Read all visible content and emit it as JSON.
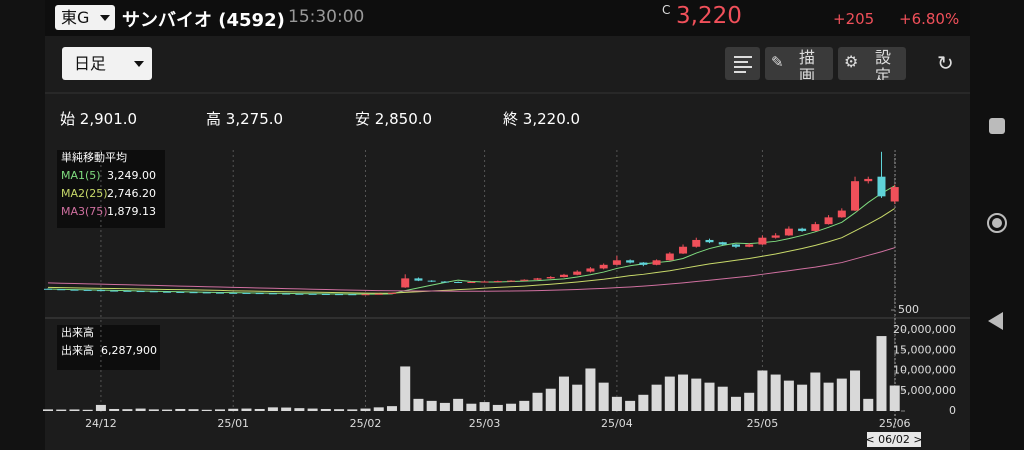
{
  "header": {
    "market": "東G",
    "name": "サンバイオ (4592)",
    "time": "15:30:00",
    "price_prefix": "C",
    "price": "3,220",
    "change": "+205",
    "change_pct": "+6.80%"
  },
  "toolbar": {
    "period": "日足",
    "draw": "描画",
    "settings": "設定"
  },
  "stats": [
    {
      "label": "始",
      "value": "2,901.0"
    },
    {
      "label": "高",
      "value": "3,275.0"
    },
    {
      "label": "安",
      "value": "2,850.0"
    },
    {
      "label": "終",
      "value": "3,220.0"
    }
  ],
  "chart_data": {
    "type": "candlestick",
    "up_color": "#f0505a",
    "down_color": "#5fd3d8",
    "volume_color": "#d9d9d9",
    "ma_title": "単純移動平均",
    "series": [
      {
        "name": "MA1(5)",
        "color": "#7fdc7f",
        "last_label": "3,249.00",
        "values": [
          965,
          958,
          952,
          946,
          941,
          934,
          928,
          922,
          916,
          909,
          903,
          898,
          893,
          888,
          884,
          880,
          876,
          872,
          868,
          864,
          861,
          858,
          855,
          853,
          851,
          852,
          856,
          930,
          990,
          1050,
          1110,
          1160,
          1130,
          1120,
          1120,
          1130,
          1140,
          1150,
          1170,
          1190,
          1230,
          1280,
          1340,
          1420,
          1480,
          1520,
          1550,
          1580,
          1640,
          1760,
          1860,
          1930,
          1980,
          1970,
          1990,
          2020,
          2080,
          2150,
          2230,
          2330,
          2440,
          2650,
          2880,
          3080,
          3249
        ]
      },
      {
        "name": "MA2(25)",
        "color": "#c8d96a",
        "last_label": "2,746.20",
        "values": [
          1000,
          995,
          990,
          985,
          980,
          975,
          970,
          965,
          960,
          955,
          950,
          945,
          940,
          935,
          925,
          920,
          915,
          910,
          905,
          900,
          895,
          890,
          885,
          880,
          875,
          872,
          875,
          890,
          905,
          920,
          935,
          950,
          965,
          985,
          1000,
          1015,
          1030,
          1050,
          1070,
          1095,
          1120,
          1150,
          1180,
          1220,
          1260,
          1290,
          1330,
          1370,
          1420,
          1470,
          1520,
          1560,
          1600,
          1640,
          1690,
          1740,
          1800,
          1860,
          1930,
          2010,
          2100,
          2250,
          2400,
          2560,
          2746.2
        ]
      },
      {
        "name": "MA3(75)",
        "color": "#d070a0",
        "last_label": "1,879.13",
        "values": [
          1100,
          1093,
          1086,
          1079,
          1072,
          1065,
          1058,
          1051,
          1044,
          1037,
          1030,
          1023,
          1016,
          1009,
          1002,
          995,
          988,
          981,
          974,
          967,
          960,
          953,
          946,
          940,
          935,
          930,
          926,
          924,
          922,
          920,
          918,
          916,
          915,
          915,
          917,
          920,
          925,
          930,
          937,
          945,
          955,
          967,
          980,
          995,
          1010,
          1030,
          1050,
          1075,
          1100,
          1130,
          1160,
          1190,
          1220,
          1250,
          1290,
          1330,
          1370,
          1410,
          1450,
          1500,
          1550,
          1630,
          1710,
          1790,
          1879.13
        ]
      }
    ],
    "ohlc": [
      [
        970,
        980,
        950,
        960
      ],
      [
        960,
        965,
        945,
        950
      ],
      [
        950,
        955,
        940,
        945
      ],
      [
        945,
        950,
        935,
        940
      ],
      [
        940,
        960,
        925,
        930
      ],
      [
        930,
        935,
        920,
        925
      ],
      [
        925,
        930,
        915,
        920
      ],
      [
        920,
        925,
        910,
        915
      ],
      [
        915,
        920,
        900,
        905
      ],
      [
        905,
        910,
        895,
        900
      ],
      [
        900,
        905,
        890,
        895
      ],
      [
        895,
        900,
        885,
        890
      ],
      [
        890,
        895,
        880,
        885
      ],
      [
        885,
        890,
        875,
        880
      ],
      [
        880,
        885,
        872,
        878
      ],
      [
        878,
        882,
        870,
        875
      ],
      [
        875,
        880,
        865,
        870
      ],
      [
        870,
        875,
        860,
        865
      ],
      [
        865,
        870,
        855,
        860
      ],
      [
        860,
        865,
        852,
        858
      ],
      [
        858,
        862,
        850,
        855
      ],
      [
        855,
        860,
        848,
        852
      ],
      [
        852,
        856,
        845,
        850
      ],
      [
        850,
        855,
        842,
        848
      ],
      [
        848,
        858,
        845,
        850
      ],
      [
        850,
        865,
        848,
        860
      ],
      [
        860,
        885,
        855,
        880
      ],
      [
        1000,
        1290,
        990,
        1200
      ],
      [
        1200,
        1220,
        1140,
        1150
      ],
      [
        1150,
        1160,
        1120,
        1130
      ],
      [
        1130,
        1140,
        1110,
        1120
      ],
      [
        1120,
        1130,
        1100,
        1110
      ],
      [
        1110,
        1130,
        1100,
        1120
      ],
      [
        1120,
        1140,
        1110,
        1130
      ],
      [
        1130,
        1150,
        1120,
        1140
      ],
      [
        1140,
        1160,
        1130,
        1150
      ],
      [
        1150,
        1180,
        1140,
        1170
      ],
      [
        1170,
        1210,
        1160,
        1200
      ],
      [
        1200,
        1250,
        1190,
        1230
      ],
      [
        1230,
        1300,
        1220,
        1280
      ],
      [
        1280,
        1380,
        1270,
        1350
      ],
      [
        1350,
        1450,
        1330,
        1420
      ],
      [
        1420,
        1530,
        1400,
        1500
      ],
      [
        1500,
        1700,
        1490,
        1600
      ],
      [
        1600,
        1620,
        1530,
        1550
      ],
      [
        1550,
        1560,
        1470,
        1500
      ],
      [
        1500,
        1620,
        1490,
        1600
      ],
      [
        1600,
        1780,
        1590,
        1750
      ],
      [
        1750,
        1950,
        1740,
        1900
      ],
      [
        1900,
        2100,
        1880,
        2050
      ],
      [
        2050,
        2080,
        1980,
        2000
      ],
      [
        2000,
        2010,
        1930,
        1950
      ],
      [
        1950,
        1960,
        1870,
        1900
      ],
      [
        1900,
        1980,
        1890,
        1950
      ],
      [
        1950,
        2150,
        1940,
        2100
      ],
      [
        2100,
        2200,
        2080,
        2150
      ],
      [
        2150,
        2350,
        2140,
        2300
      ],
      [
        2300,
        2320,
        2230,
        2250
      ],
      [
        2250,
        2450,
        2240,
        2400
      ],
      [
        2400,
        2600,
        2390,
        2550
      ],
      [
        2550,
        2750,
        2540,
        2700
      ],
      [
        2700,
        3450,
        2690,
        3350
      ],
      [
        3350,
        3450,
        3300,
        3400
      ],
      [
        3450,
        4000,
        2980,
        3015
      ],
      [
        2901,
        3275,
        2850,
        3220
      ]
    ],
    "volume_title": "出来高",
    "volume_label": "出来高",
    "volume_value_label": "6,287,900",
    "volume": [
      400000,
      350000,
      380000,
      300000,
      1500000,
      500000,
      450000,
      600000,
      400000,
      350000,
      500000,
      450000,
      300000,
      400000,
      550000,
      600000,
      500000,
      900000,
      850000,
      700000,
      600000,
      500000,
      450000,
      400000,
      600000,
      900000,
      1200000,
      11000000,
      3000000,
      2500000,
      2000000,
      3000000,
      1800000,
      2200000,
      1500000,
      1800000,
      2500000,
      4500000,
      5500000,
      8500000,
      6500000,
      10500000,
      7000000,
      3500000,
      2500000,
      4000000,
      6500000,
      8500000,
      9000000,
      8000000,
      7000000,
      6000000,
      3500000,
      4500000,
      10000000,
      9000000,
      7500000,
      6500000,
      9500000,
      7000000,
      8000000,
      10000000,
      3000000,
      18500000,
      6287900
    ],
    "ylim": [
      390,
      4040
    ],
    "yticks": [
      500
    ],
    "vlim": [
      0,
      20000000
    ],
    "vticks": [
      0,
      {
        "value": 5000000,
        "label": "5,000,000"
      },
      {
        "value": 10000000,
        "label": "10,000,000"
      },
      {
        "value": 15000000,
        "label": "15,000,000"
      },
      {
        "value": 20000000,
        "label": "20,000,000"
      }
    ],
    "xticks": [
      {
        "value": 4,
        "label": "24/12"
      },
      {
        "value": 14,
        "label": "25/01"
      },
      {
        "value": 24,
        "label": "25/02"
      },
      {
        "value": 33,
        "label": "25/03"
      },
      {
        "value": 43,
        "label": "25/04"
      },
      {
        "value": 54,
        "label": "25/05"
      },
      {
        "value": 64,
        "label": "25/06"
      }
    ],
    "cursor_label": "< 06/02 >"
  }
}
